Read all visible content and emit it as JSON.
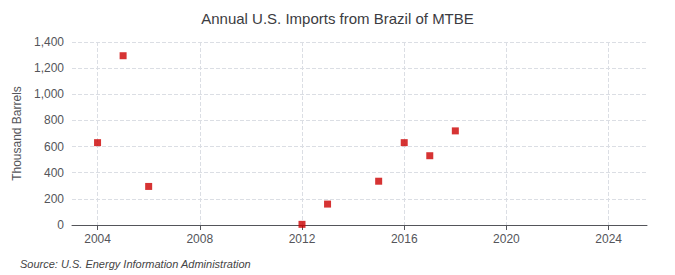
{
  "chart_data": {
    "type": "scatter",
    "title": "Annual U.S. Imports from Brazil of MTBE",
    "ylabel": "Thousand Barrels",
    "annotation": "Source: U.S. Energy Information Administration",
    "x": [
      2004,
      2005,
      2006,
      2012,
      2013,
      2015,
      2016,
      2017,
      2018
    ],
    "values": [
      630,
      1295,
      295,
      5,
      160,
      335,
      630,
      530,
      720
    ],
    "color": "#cc0000",
    "marker": "square",
    "xlim": [
      2003,
      2025.5
    ],
    "xticks": [
      2004,
      2008,
      2012,
      2016,
      2020,
      2024
    ],
    "ylim": [
      0,
      1400
    ],
    "yticks": [
      0,
      200,
      400,
      600,
      {
        "value": 1000,
        "label": "1,000"
      },
      800,
      {
        "value": 1200,
        "label": "1,200"
      },
      {
        "value": 1400,
        "label": "1,400"
      }
    ],
    "grid": true
  }
}
